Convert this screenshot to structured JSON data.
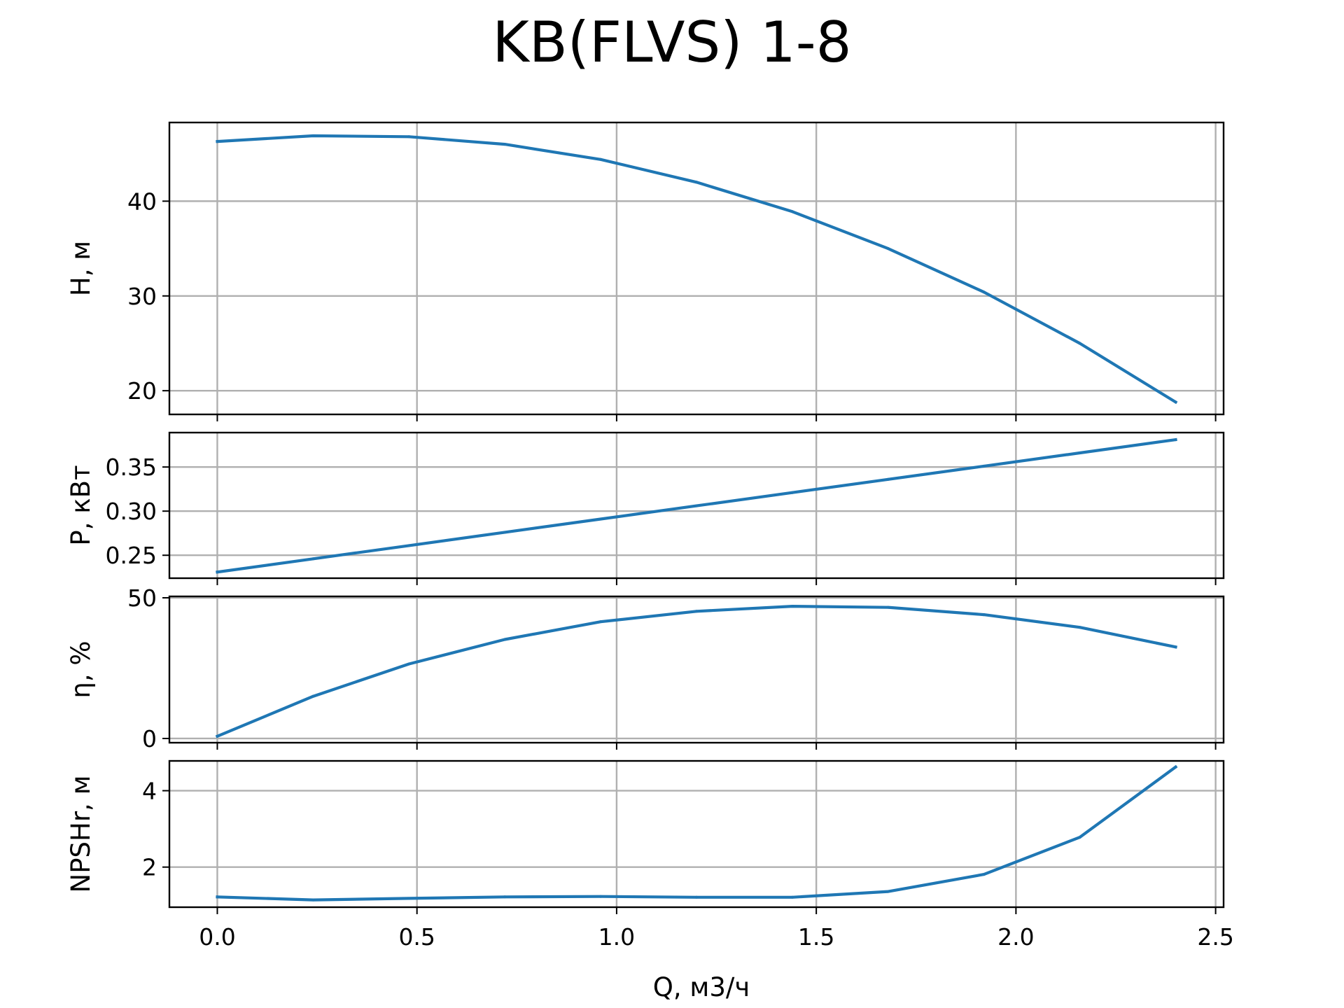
{
  "chart_data": {
    "type": "line",
    "title": "KB(FLVS) 1-8",
    "xlabel": "Q, м3/ч",
    "xlim": [
      -0.12,
      2.52
    ],
    "xticks": [
      0.0,
      0.5,
      1.0,
      1.5,
      2.0,
      2.5
    ],
    "xtick_labels": [
      "0.0",
      "0.5",
      "1.0",
      "1.5",
      "2.0",
      "2.5"
    ],
    "grid": true,
    "line_color": "#1f77b4",
    "x": [
      0.0,
      0.24,
      0.48,
      0.72,
      0.96,
      1.2,
      1.44,
      1.68,
      1.92,
      2.16,
      2.4
    ],
    "panels": [
      {
        "ylabel": "H, м",
        "ylim": [
          17.5,
          48.3
        ],
        "yticks": [
          20,
          30,
          40
        ],
        "ytick_labels": [
          "20",
          "30",
          "40"
        ],
        "values": [
          46.3,
          46.9,
          46.8,
          46.0,
          44.4,
          42.0,
          38.9,
          35.0,
          30.4,
          25.0,
          18.8
        ]
      },
      {
        "ylabel": "P, кВт",
        "ylim": [
          0.224,
          0.389
        ],
        "yticks": [
          0.25,
          0.3,
          0.35
        ],
        "ytick_labels": [
          "0.25",
          "0.30",
          "0.35"
        ],
        "values": [
          0.231,
          0.246,
          0.261,
          0.276,
          0.291,
          0.306,
          0.321,
          0.336,
          0.351,
          0.366,
          0.381
        ]
      },
      {
        "ylabel": "η, %",
        "ylim": [
          -1.5,
          50.5
        ],
        "yticks": [
          0,
          50
        ],
        "ytick_labels": [
          "0",
          "50"
        ],
        "values": [
          0.8,
          15.0,
          26.5,
          35.2,
          41.5,
          45.2,
          47.0,
          46.6,
          44.0,
          39.5,
          32.5
        ]
      },
      {
        "ylabel": "NPSHr, м",
        "ylim": [
          0.95,
          4.78
        ],
        "yticks": [
          2,
          4
        ],
        "ytick_labels": [
          "2",
          "4"
        ],
        "values": [
          1.22,
          1.14,
          1.18,
          1.22,
          1.23,
          1.21,
          1.21,
          1.36,
          1.81,
          2.78,
          4.62
        ]
      }
    ]
  }
}
